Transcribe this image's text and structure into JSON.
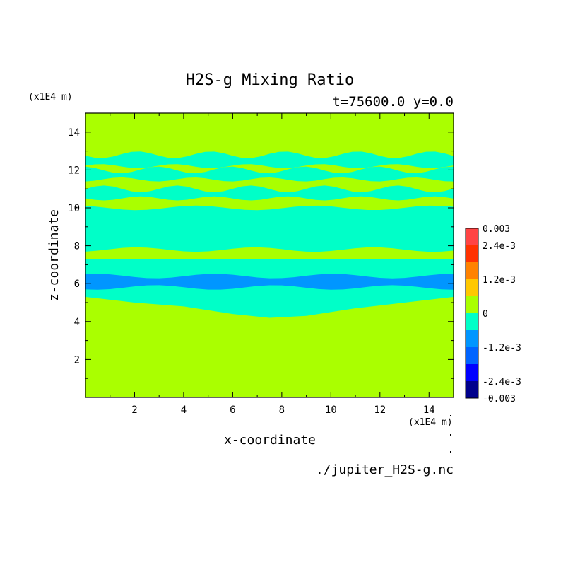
{
  "chart_data": {
    "type": "heatmap",
    "title": "H2S-g Mixing Ratio",
    "subtitle": "t=75600.0 y=0.0",
    "xlabel": "x-coordinate",
    "ylabel": "z-coordinate",
    "x_unit": "(x1E4 m)",
    "y_unit": "(x1E4 m)",
    "xlim": [
      0,
      15
    ],
    "ylim": [
      0,
      15
    ],
    "x_ticks": [
      2,
      4,
      6,
      8,
      10,
      12,
      14
    ],
    "y_ticks": [
      2,
      4,
      6,
      8,
      10,
      12,
      14
    ],
    "colorbar": {
      "range": [
        -0.003,
        0.003
      ],
      "tick_labels": [
        "0.003",
        "2.4e-3",
        "1.2e-3",
        "0",
        "-1.2e-3",
        "-2.4e-3",
        "-0.003"
      ],
      "tick_values": [
        0.003,
        0.0024,
        0.0012,
        0,
        -0.0012,
        -0.0024,
        -0.003
      ],
      "levels": [
        -0.003,
        -0.0024,
        -0.0018,
        -0.0012,
        -0.0006,
        0,
        0.0006,
        0.0012,
        0.0018,
        0.0024,
        0.003
      ],
      "colors": [
        "#00008c",
        "#0000ff",
        "#0064ff",
        "#0096ff",
        "#00ffc8",
        "#aaff00",
        "#ffc800",
        "#ff8200",
        "#ff3200",
        "#ff4444"
      ]
    },
    "background_color": "#aaff00",
    "regions": [
      {
        "level_color": "#00ffc8",
        "value_range": [
          -0.0006,
          0
        ],
        "z_bottom_profile": [
          [
            0,
            5.3
          ],
          [
            2,
            5.0
          ],
          [
            4,
            4.8
          ],
          [
            6,
            4.4
          ],
          [
            7.5,
            4.2
          ],
          [
            9,
            4.3
          ],
          [
            11,
            4.7
          ],
          [
            13,
            5.0
          ],
          [
            15,
            5.3
          ]
        ],
        "z_top": 7.3
      },
      {
        "level_color": "#0096ff",
        "value_range": [
          -0.0012,
          -0.0006
        ],
        "z_range": [
          5.8,
          6.4
        ]
      },
      {
        "level_color": "#00ffc8",
        "value_range": [
          -0.0006,
          0
        ],
        "z_range": [
          7.8,
          10.0
        ]
      },
      {
        "level_color": "#00ffc8",
        "value_range": [
          -0.0006,
          0
        ],
        "z_bands": [
          [
            10.5,
            11.0
          ],
          [
            11.5,
            12.0
          ],
          [
            12.2,
            12.8
          ]
        ]
      }
    ],
    "source_file": "./jupiter_H2S-g.nc"
  }
}
